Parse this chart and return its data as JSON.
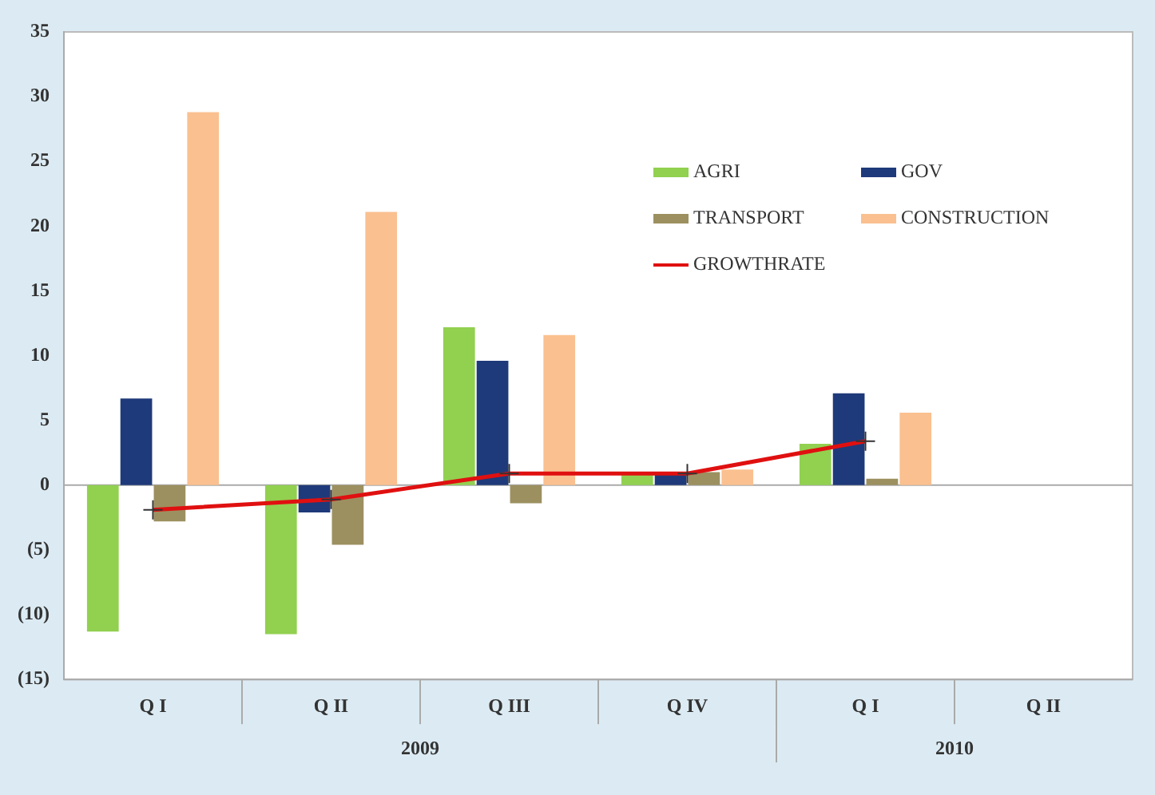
{
  "chart_data": {
    "type": "bar",
    "categories": [
      "Q I",
      "Q II",
      "Q III",
      "Q IV",
      "Q I",
      "Q II"
    ],
    "series": [
      {
        "name": "AGRI",
        "color": "#92d050",
        "values": [
          -11.3,
          -11.5,
          12.2,
          0.8,
          3.2,
          null
        ]
      },
      {
        "name": "GOV",
        "color": "#1f3a7a",
        "values": [
          6.7,
          -2.1,
          9.6,
          1.0,
          7.1,
          null
        ]
      },
      {
        "name": "TRANSPORT",
        "color": "#9c9060",
        "values": [
          -2.8,
          -4.6,
          -1.4,
          1.0,
          0.5,
          null
        ]
      },
      {
        "name": "CONSTRUCTION",
        "color": "#fac090",
        "values": [
          28.8,
          21.1,
          11.6,
          1.2,
          5.6,
          null
        ]
      },
      {
        "name": "GROWTHRATE",
        "type": "line",
        "color": "#e01010",
        "values": [
          -1.9,
          -1.1,
          0.9,
          0.9,
          3.4,
          null
        ]
      }
    ],
    "ylim": [
      -15,
      35
    ],
    "yticks": [
      {
        "value": -15,
        "label": "(15)"
      },
      {
        "value": -10,
        "label": "(10)"
      },
      {
        "value": -5,
        "label": "(5)"
      },
      0,
      5,
      10,
      15,
      20,
      25,
      30,
      35
    ],
    "annotations": [
      "2009",
      "2010"
    ],
    "ref_lines": [
      {
        "axis": "y",
        "value": 0,
        "color": "#aaaaaa"
      }
    ],
    "grid": false,
    "legend": "top right",
    "marker": "cross"
  }
}
